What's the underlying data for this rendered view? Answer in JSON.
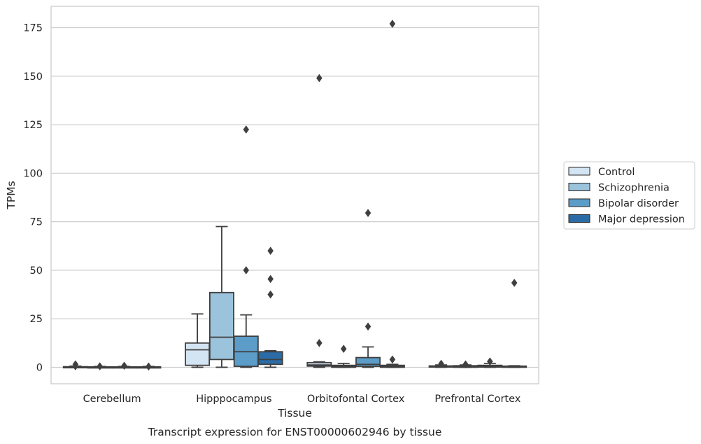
{
  "chart_data": {
    "type": "box",
    "title": "Transcript expression for ENST00000602946 by tissue",
    "xlabel": "Tissue",
    "ylabel": "TPMs",
    "ylim": [
      -8.5,
      186
    ],
    "yticks": [
      0,
      25,
      50,
      75,
      100,
      125,
      150,
      175
    ],
    "grid": true,
    "legend_position": "right",
    "categories": [
      "Cerebellum",
      "Hipppocampus",
      "Orbitofontal Cortex",
      "Prefrontal Cortex"
    ],
    "series": [
      {
        "name": "Control",
        "color": "#d3e4f3",
        "boxes": [
          {
            "q1": 0,
            "median": 0,
            "q3": 0.3,
            "whisker_low": 0,
            "whisker_high": 0.6,
            "outliers": [
              0.5,
              1.5
            ]
          },
          {
            "q1": 1,
            "median": 9,
            "q3": 12.5,
            "whisker_low": 0,
            "whisker_high": 27.5,
            "outliers": []
          },
          {
            "q1": 0.6,
            "median": 1.2,
            "q3": 2.4,
            "whisker_low": 0,
            "whisker_high": 2.8,
            "outliers": [
              12.5,
              149
            ]
          },
          {
            "q1": 0.1,
            "median": 0.4,
            "q3": 0.7,
            "whisker_low": 0,
            "whisker_high": 1.2,
            "outliers": [
              1.8
            ]
          }
        ]
      },
      {
        "name": "Schizophrenia",
        "color": "#9cc3dc",
        "boxes": [
          {
            "q1": 0,
            "median": 0,
            "q3": 0.2,
            "whisker_low": 0,
            "whisker_high": 0.4,
            "outliers": [
              0.5
            ]
          },
          {
            "q1": 4,
            "median": 15.5,
            "q3": 38.5,
            "whisker_low": 0,
            "whisker_high": 72.5,
            "outliers": []
          },
          {
            "q1": 0,
            "median": 0.5,
            "q3": 1.0,
            "whisker_low": 0,
            "whisker_high": 2.0,
            "outliers": [
              9.5
            ]
          },
          {
            "q1": 0,
            "median": 0.3,
            "q3": 0.8,
            "whisker_low": 0,
            "whisker_high": 1.2,
            "outliers": [
              1.5
            ]
          }
        ]
      },
      {
        "name": "Bipolar disorder",
        "color": "#5b9cc8",
        "boxes": [
          {
            "q1": 0,
            "median": 0,
            "q3": 0.2,
            "whisker_low": 0,
            "whisker_high": 0.4,
            "outliers": [
              0.8
            ]
          },
          {
            "q1": 0.5,
            "median": 8,
            "q3": 16,
            "whisker_low": 0,
            "whisker_high": 27,
            "outliers": [
              50,
              122.5
            ]
          },
          {
            "q1": 0.5,
            "median": 1.5,
            "q3": 5,
            "whisker_low": 0,
            "whisker_high": 10.5,
            "outliers": [
              21,
              79.5
            ]
          },
          {
            "q1": 0.1,
            "median": 0.4,
            "q3": 1.0,
            "whisker_low": 0,
            "whisker_high": 2.0,
            "outliers": [
              3
            ]
          }
        ]
      },
      {
        "name": "Major depression",
        "color": "#2c6ca6",
        "boxes": [
          {
            "q1": 0,
            "median": 0,
            "q3": 0.2,
            "whisker_low": 0,
            "whisker_high": 0.4,
            "outliers": [
              0.4
            ]
          },
          {
            "q1": 1.5,
            "median": 4,
            "q3": 8,
            "whisker_low": 0,
            "whisker_high": 8.5,
            "outliers": [
              37.5,
              45.5,
              60
            ]
          },
          {
            "q1": 0,
            "median": 0.4,
            "q3": 1.0,
            "whisker_low": 0,
            "whisker_high": 1.5,
            "outliers": [
              4,
              177
            ]
          },
          {
            "q1": 0,
            "median": 0.2,
            "q3": 0.6,
            "whisker_low": 0,
            "whisker_high": 0.8,
            "outliers": [
              43.5
            ]
          }
        ]
      }
    ]
  }
}
